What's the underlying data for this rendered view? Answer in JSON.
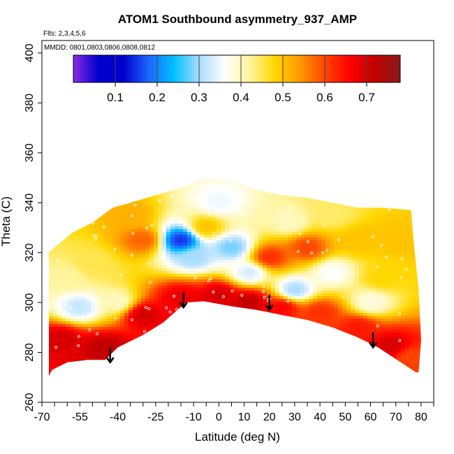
{
  "chart_data": {
    "type": "heatmap",
    "title": "ATOM1 Southbound asymmetry_937_AMP",
    "flights_note": "Flts: 2,3,4,5,6",
    "dates_note": "MMDD: 0801,0803,0806,0808,0812",
    "xlabel": "Latitude (deg N)",
    "ylabel": "Theta (C)",
    "xlim": [
      -70,
      85
    ],
    "ylim": [
      260,
      405
    ],
    "x_tick_labels": [
      "-70",
      "-55",
      "-40",
      "-25",
      "-10",
      "0",
      "10",
      "20",
      "30",
      "40",
      "50",
      "60",
      "70",
      "80"
    ],
    "x_tick_values": [
      -70,
      -55,
      -40,
      -25,
      -10,
      0,
      10,
      20,
      30,
      40,
      50,
      60,
      70,
      80
    ],
    "y_tick_labels": [
      "260",
      "280",
      "300",
      "320",
      "340",
      "360",
      "380",
      "400"
    ],
    "y_tick_values": [
      260,
      280,
      300,
      320,
      340,
      360,
      380,
      400
    ],
    "colorbar": {
      "min": 0.0,
      "max": 0.78,
      "tick_labels": [
        "0.1",
        "0.2",
        "0.3",
        "0.4",
        "0.5",
        "0.6",
        "0.7"
      ],
      "tick_values": [
        0.1,
        0.2,
        0.3,
        0.4,
        0.5,
        0.6,
        0.7
      ],
      "colors": [
        "#8a2be2",
        "#0000cd",
        "#0000cd",
        "#1e66ff",
        "#00bfff",
        "#a8dcff",
        "#ffffff",
        "#fff5a0",
        "#ffd700",
        "#ff9a00",
        "#ff4500",
        "#ff0000",
        "#c00000",
        "#8b1a1a"
      ]
    },
    "lower_boundary": [
      {
        "lat": -70,
        "theta": 265
      },
      {
        "lat": -66,
        "theta": 273
      },
      {
        "lat": -60,
        "theta": 276
      },
      {
        "lat": -52,
        "theta": 277
      },
      {
        "lat": -45,
        "theta": 277
      },
      {
        "lat": -40,
        "theta": 282
      },
      {
        "lat": -30,
        "theta": 287
      },
      {
        "lat": -22,
        "theta": 292
      },
      {
        "lat": -13,
        "theta": 300
      },
      {
        "lat": -6,
        "theta": 300.5
      },
      {
        "lat": 5,
        "theta": 298.5
      },
      {
        "lat": 15,
        "theta": 297
      },
      {
        "lat": 25,
        "theta": 295
      },
      {
        "lat": 35,
        "theta": 293
      },
      {
        "lat": 45,
        "theta": 290
      },
      {
        "lat": 55,
        "theta": 286
      },
      {
        "lat": 63,
        "theta": 282
      },
      {
        "lat": 72,
        "theta": 276
      },
      {
        "lat": 78,
        "theta": 272
      }
    ],
    "upper_boundary": [
      {
        "lat": -70,
        "theta": 318
      },
      {
        "lat": -65,
        "theta": 322
      },
      {
        "lat": -58,
        "theta": 328
      },
      {
        "lat": -50,
        "theta": 332
      },
      {
        "lat": -42,
        "theta": 338
      },
      {
        "lat": -35,
        "theta": 340
      },
      {
        "lat": -25,
        "theta": 343
      },
      {
        "lat": -15,
        "theta": 346
      },
      {
        "lat": -5,
        "theta": 350
      },
      {
        "lat": 5,
        "theta": 349
      },
      {
        "lat": 15,
        "theta": 345
      },
      {
        "lat": 25,
        "theta": 343
      },
      {
        "lat": 35,
        "theta": 342
      },
      {
        "lat": 45,
        "theta": 340
      },
      {
        "lat": 55,
        "theta": 338
      },
      {
        "lat": 65,
        "theta": 338
      },
      {
        "lat": 76,
        "theta": 337
      }
    ],
    "right_edge": [
      {
        "lat": 76,
        "theta": 337
      },
      {
        "lat": 77,
        "theta": 325
      },
      {
        "lat": 79,
        "theta": 305
      },
      {
        "lat": 80,
        "theta": 285
      },
      {
        "lat": 79,
        "theta": 272
      }
    ],
    "field_blobs": [
      {
        "lat": -45,
        "theta": 282,
        "v": 0.72
      },
      {
        "lat": -62,
        "theta": 285,
        "v": 0.7
      },
      {
        "lat": -30,
        "theta": 295,
        "v": 0.7
      },
      {
        "lat": -15,
        "theta": 302,
        "v": 0.68
      },
      {
        "lat": 0,
        "theta": 303,
        "v": 0.7
      },
      {
        "lat": 12,
        "theta": 300,
        "v": 0.72
      },
      {
        "lat": 25,
        "theta": 298,
        "v": 0.66
      },
      {
        "lat": 40,
        "theta": 296,
        "v": 0.62
      },
      {
        "lat": 55,
        "theta": 290,
        "v": 0.64
      },
      {
        "lat": 68,
        "theta": 282,
        "v": 0.7
      },
      {
        "lat": 75,
        "theta": 278,
        "v": 0.6
      },
      {
        "lat": -30,
        "theta": 325,
        "v": 0.58
      },
      {
        "lat": -5,
        "theta": 330,
        "v": 0.5
      },
      {
        "lat": 20,
        "theta": 318,
        "v": 0.62
      },
      {
        "lat": 35,
        "theta": 322,
        "v": 0.6
      },
      {
        "lat": 55,
        "theta": 325,
        "v": 0.5
      },
      {
        "lat": 65,
        "theta": 310,
        "v": 0.48
      },
      {
        "lat": -50,
        "theta": 315,
        "v": 0.45
      },
      {
        "lat": -40,
        "theta": 300,
        "v": 0.4
      },
      {
        "lat": -55,
        "theta": 298,
        "v": 0.32
      },
      {
        "lat": -15,
        "theta": 325,
        "v": 0.15
      },
      {
        "lat": -10,
        "theta": 318,
        "v": 0.3
      },
      {
        "lat": 5,
        "theta": 322,
        "v": 0.28
      },
      {
        "lat": 12,
        "theta": 312,
        "v": 0.33
      },
      {
        "lat": 30,
        "theta": 305,
        "v": 0.3
      },
      {
        "lat": 45,
        "theta": 312,
        "v": 0.36
      },
      {
        "lat": 60,
        "theta": 300,
        "v": 0.38
      },
      {
        "lat": -60,
        "theta": 310,
        "v": 0.42
      },
      {
        "lat": 45,
        "theta": 335,
        "v": 0.44
      },
      {
        "lat": 0,
        "theta": 340,
        "v": 0.35
      },
      {
        "lat": -35,
        "theta": 335,
        "v": 0.52
      },
      {
        "lat": 70,
        "theta": 325,
        "v": 0.5
      },
      {
        "lat": 28,
        "theta": 332,
        "v": 0.4
      }
    ],
    "arrows": [
      {
        "lat": -43,
        "theta_top": 282,
        "theta_bottom": 276
      },
      {
        "lat": -14,
        "theta_top": 304,
        "theta_bottom": 298
      },
      {
        "lat": 20,
        "theta_top": 303,
        "theta_bottom": 297
      },
      {
        "lat": 61,
        "theta_top": 288,
        "theta_bottom": 282
      }
    ]
  }
}
